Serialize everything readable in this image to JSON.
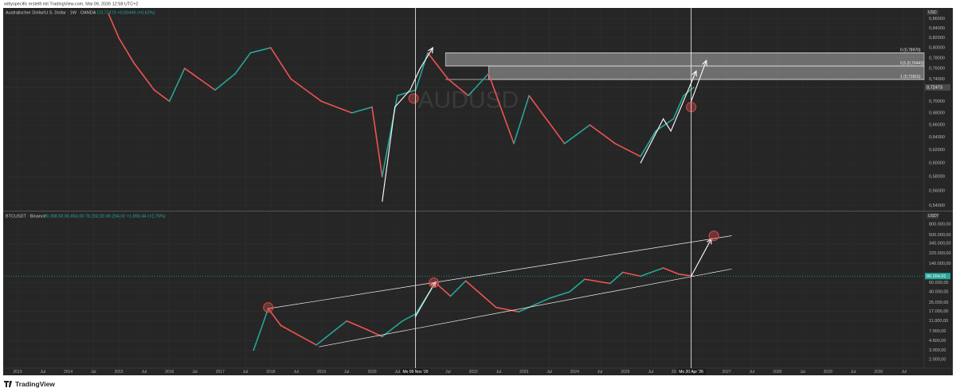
{
  "header": {
    "caption": "wittyspecific erstellt mit TradingView.com, Mai 09, 2026 12:58 UTC+2"
  },
  "footer": {
    "logo": "TradingView"
  },
  "chart_data": [
    {
      "type": "line",
      "title": "Australischer Dollar/U.S. Dollar · 1W · OANDA",
      "ohlc": "C0,72473 +0,00449 (+0,62%)",
      "watermark": "AUDUSD",
      "unit": "USD",
      "log_scale": true,
      "grid": true,
      "up_color": "#26a69a",
      "down_color": "#ef5350",
      "xlim": [
        2012.733,
        2030.9
      ],
      "ylim": [
        0.535,
        0.88
      ],
      "yticks": [
        {
          "value": 0.86,
          "label": "0,86000"
        },
        {
          "value": 0.84,
          "label": "0,84000"
        },
        {
          "value": 0.82,
          "label": "0,82000"
        },
        {
          "value": 0.8,
          "label": "0,80000"
        },
        {
          "value": 0.78,
          "label": "0,78000"
        },
        {
          "value": 0.76,
          "label": "0,76000"
        },
        {
          "value": 0.74,
          "label": "0,74000"
        },
        {
          "value": 0.7,
          "label": "0,70000"
        },
        {
          "value": 0.68,
          "label": "0,68000"
        },
        {
          "value": 0.66,
          "label": "0,66000"
        },
        {
          "value": 0.64,
          "label": "0,64000"
        },
        {
          "value": 0.62,
          "label": "0,62000"
        },
        {
          "value": 0.6,
          "label": "0,60000"
        },
        {
          "value": 0.58,
          "label": "0,58000"
        },
        {
          "value": 0.56,
          "label": "0,56000"
        },
        {
          "value": 0.54,
          "label": "0,54000"
        }
      ],
      "x": [
        2014.8,
        2015.0,
        2015.3,
        2015.7,
        2016.0,
        2016.3,
        2016.9,
        2017.3,
        2017.6,
        2018.0,
        2018.4,
        2019.0,
        2019.6,
        2020.0,
        2020.2,
        2020.5,
        2020.86,
        2021.1,
        2021.5,
        2021.9,
        2022.3,
        2022.8,
        2023.1,
        2023.8,
        2024.3,
        2024.8,
        2025.3,
        2025.6,
        2025.95,
        2026.15,
        2026.35
      ],
      "values": [
        0.87,
        0.82,
        0.77,
        0.72,
        0.7,
        0.76,
        0.72,
        0.75,
        0.79,
        0.8,
        0.74,
        0.7,
        0.68,
        0.69,
        0.58,
        0.71,
        0.72,
        0.79,
        0.74,
        0.71,
        0.75,
        0.63,
        0.71,
        0.63,
        0.66,
        0.63,
        0.61,
        0.65,
        0.67,
        0.71,
        0.72473
      ],
      "last_price": {
        "value": 0.72473,
        "label": "0,72473",
        "color": "#4a4a4a"
      },
      "fib": {
        "levels": [
          {
            "value": 0.7897,
            "label": "0 (0,78970)"
          },
          {
            "value": 0.76443,
            "label": "0,5 (0,76443)"
          },
          {
            "value": 0.73915,
            "label": "1 (0,73915)"
          }
        ],
        "start": [
          2021.45,
          2022.3
        ]
      },
      "drawings": [
        {
          "kind": "arrow",
          "points": [
            [
              2020.2,
              0.545
            ],
            [
              2020.45,
              0.69
            ],
            [
              2020.75,
              0.72
            ],
            [
              2020.95,
              0.76
            ],
            [
              2021.2,
              0.8
            ]
          ]
        },
        {
          "kind": "arrow",
          "points": [
            [
              2025.3,
              0.6
            ],
            [
              2025.75,
              0.67
            ],
            [
              2025.9,
              0.65
            ],
            [
              2026.4,
              0.755
            ]
          ]
        },
        {
          "kind": "arrow",
          "points": [
            [
              2026.3,
              0.7
            ],
            [
              2026.6,
              0.775
            ]
          ]
        },
        {
          "kind": "circle",
          "x": 2020.82,
          "y": 0.705
        },
        {
          "kind": "circle",
          "x": 2026.3,
          "y": 0.69
        }
      ]
    },
    {
      "type": "line",
      "title": "BTCUSDT · Binance",
      "ohlc": "78.388,58 80.850,00 78.202,00 80.264,01 +1.890,44 (+2,76%)",
      "unit": "USDT",
      "log_scale": true,
      "grid": true,
      "up_color": "#26a69a",
      "down_color": "#ef5350",
      "xlim": [
        2012.733,
        2030.9
      ],
      "ylim": [
        1360,
        1310000
      ],
      "yticks": [
        {
          "value": 800000,
          "label": "800.000,00"
        },
        {
          "value": 500000,
          "label": "500.000,00"
        },
        {
          "value": 340000,
          "label": "340.000,00"
        },
        {
          "value": 220000,
          "label": "220.000,00"
        },
        {
          "value": 140000,
          "label": "140.000,00"
        },
        {
          "value": 60000,
          "label": "60.000,00"
        },
        {
          "value": 40000,
          "label": "40.000,00"
        },
        {
          "value": 25000,
          "label": "25.000,00"
        },
        {
          "value": 17000,
          "label": "17.000,00"
        },
        {
          "value": 11000,
          "label": "11.000,00"
        },
        {
          "value": 7000,
          "label": "7.000,00"
        },
        {
          "value": 4600,
          "label": "4.600,00"
        },
        {
          "value": 3000,
          "label": "3.000,00"
        },
        {
          "value": 2000,
          "label": "2.000,00"
        }
      ],
      "xticks": [
        2013,
        {
          "value": 2013.5,
          "label": "Jul"
        },
        2014,
        {
          "value": 2014.5,
          "label": "Jul"
        },
        2015,
        {
          "value": 2015.5,
          "label": "Jul"
        },
        2016,
        {
          "value": 2016.5,
          "label": "Jul"
        },
        2017,
        {
          "value": 2017.5,
          "label": "Jul"
        },
        2018,
        {
          "value": 2018.5,
          "label": "Jul"
        },
        2019,
        {
          "value": 2019.5,
          "label": "Jul"
        },
        2020,
        {
          "value": 2020.5,
          "label": "Jul"
        },
        2021,
        {
          "value": 2021.5,
          "label": "Jul"
        },
        2022,
        {
          "value": 2022.5,
          "label": "Jul"
        },
        2023,
        {
          "value": 2023.5,
          "label": "Jul"
        },
        2024,
        {
          "value": 2024.5,
          "label": "Jul"
        },
        2025,
        {
          "value": 2025.5,
          "label": "Jul"
        },
        2026,
        {
          "value": 2026.5,
          "label": "Jul"
        },
        2027,
        {
          "value": 2027.5,
          "label": "Jul"
        },
        2028,
        {
          "value": 2028.5,
          "label": "Jul"
        },
        2029,
        {
          "value": 2029.5,
          "label": "Jul"
        },
        2030,
        {
          "value": 2030.5,
          "label": "Jul"
        }
      ],
      "crosshairs": [
        {
          "value": 2020.857,
          "label": "Mo 09 Nov '20"
        },
        {
          "value": 2026.3,
          "label": "Mo 20 Apr '26"
        }
      ],
      "x": [
        2017.66,
        2017.95,
        2018.2,
        2018.9,
        2019.5,
        2019.9,
        2020.2,
        2020.6,
        2020.86,
        2021.25,
        2021.55,
        2021.85,
        2022.45,
        2022.9,
        2023.5,
        2023.9,
        2024.2,
        2024.7,
        2024.95,
        2025.3,
        2025.75,
        2026.05,
        2026.35
      ],
      "values": [
        3000,
        19000,
        9000,
        3800,
        11000,
        7500,
        5500,
        11000,
        15000,
        60000,
        33000,
        65000,
        20000,
        16500,
        30000,
        40000,
        70000,
        58000,
        95000,
        80000,
        115000,
        88000,
        80264.01
      ],
      "last_price": {
        "value": 80264.01,
        "label": "80.264,01",
        "color": "#26a69a"
      },
      "drawings": [
        {
          "kind": "line",
          "points": [
            [
              2017.95,
              19000
            ],
            [
              2027.1,
              480000
            ]
          ]
        },
        {
          "kind": "line",
          "points": [
            [
              2018.95,
              3500
            ],
            [
              2027.1,
              110000
            ]
          ]
        },
        {
          "kind": "arrow",
          "points": [
            [
              2020.85,
              13000
            ],
            [
              2021.25,
              62000
            ]
          ]
        },
        {
          "kind": "arrow",
          "points": [
            [
              2026.3,
              80000
            ],
            [
              2026.7,
              420000
            ]
          ]
        },
        {
          "kind": "circle",
          "x": 2017.95,
          "y": 20000
        },
        {
          "kind": "circle",
          "x": 2021.22,
          "y": 60000
        },
        {
          "kind": "circle",
          "x": 2026.75,
          "y": 480000
        }
      ]
    }
  ]
}
